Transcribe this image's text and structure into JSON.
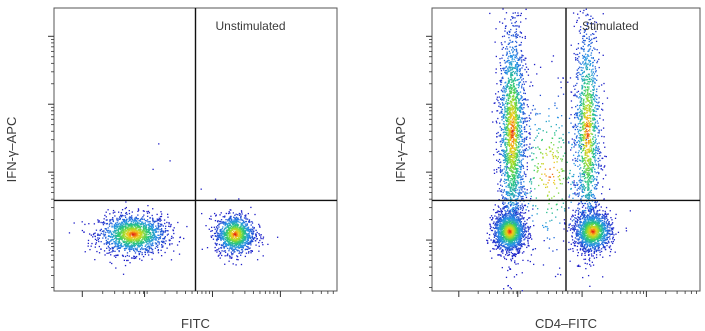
{
  "chart_data": [
    {
      "type": "scatter",
      "title": "Unstimulated",
      "xlabel": "FITC",
      "ylabel": "IFN-γ–APC",
      "quadrant_gates": {
        "x": 0.5,
        "y": 0.32
      },
      "xlim": [
        0,
        1
      ],
      "ylim": [
        0,
        1
      ],
      "grid": false,
      "clusters": [
        {
          "name": "",
          "cx": 0.28,
          "cy": 0.2,
          "sx": 0.06,
          "sy": 0.035,
          "count": 1500
        },
        {
          "name": "",
          "cx": 0.64,
          "cy": 0.2,
          "sx": 0.035,
          "sy": 0.035,
          "count": 1100
        }
      ],
      "outliers": [
        [
          0.37,
          0.52
        ],
        [
          0.35,
          0.43
        ],
        [
          0.52,
          0.36
        ],
        [
          0.79,
          0.19
        ],
        [
          0.41,
          0.46
        ]
      ]
    },
    {
      "type": "scatter",
      "title": "Stimulated",
      "xlabel": "CD4–FITC",
      "ylabel": "IFN-γ–APC",
      "quadrant_gates": {
        "x": 0.5,
        "y": 0.32
      },
      "xlim": [
        0,
        1
      ],
      "ylim": [
        0,
        1
      ],
      "grid": false,
      "clusters": [
        {
          "name": "",
          "cx": 0.29,
          "cy": 0.21,
          "sx": 0.03,
          "sy": 0.035,
          "count": 1400
        },
        {
          "name": "",
          "cx": 0.6,
          "cy": 0.21,
          "sx": 0.035,
          "sy": 0.035,
          "count": 1300
        },
        {
          "name": "",
          "cx": 0.3,
          "cy": 0.56,
          "sx": 0.025,
          "sy": 0.2,
          "count": 1900
        },
        {
          "name": "",
          "cx": 0.58,
          "cy": 0.56,
          "sx": 0.025,
          "sy": 0.2,
          "count": 1300
        },
        {
          "name": "",
          "cx": 0.44,
          "cy": 0.42,
          "sx": 0.07,
          "sy": 0.15,
          "count": 350
        }
      ],
      "outliers": []
    }
  ]
}
